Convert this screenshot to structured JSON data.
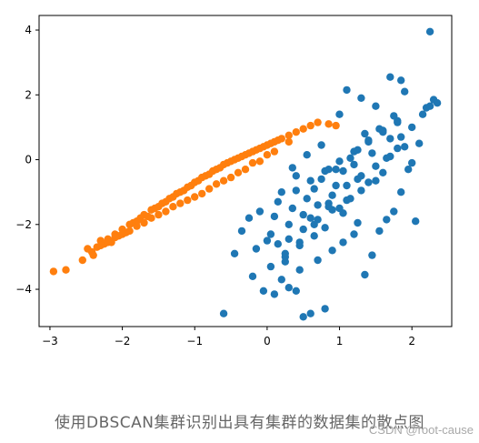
{
  "caption": "使用DBSCAN集群识别出具有集群的数据集的散点图",
  "watermark": "CSDN @root-cause",
  "colors": {
    "cluster_0": "#1f77b4",
    "cluster_1": "#ff7f0e"
  },
  "chart_data": {
    "type": "scatter",
    "title": "",
    "xlabel": "",
    "ylabel": "",
    "xlim": [
      -3.15,
      2.55
    ],
    "ylim": [
      -5.15,
      4.45
    ],
    "xticks": [
      -3,
      -2,
      -1,
      0,
      1,
      2
    ],
    "yticks": [
      -4,
      -2,
      0,
      2,
      4
    ],
    "grid": false,
    "series": [
      {
        "color": "#ff7f0e",
        "x": [
          -2.95,
          -2.78,
          -2.55,
          -2.48,
          -2.42,
          -2.35,
          -2.3,
          -2.25,
          -2.2,
          -2.15,
          -2.1,
          -2.05,
          -2.0,
          -1.95,
          -1.9,
          -1.85,
          -1.8,
          -1.75,
          -1.7,
          -1.65,
          -1.6,
          -1.55,
          -1.5,
          -1.45,
          -1.4,
          -1.35,
          -1.3,
          -1.25,
          -1.2,
          -1.15,
          -1.1,
          -1.05,
          -1.0,
          -0.95,
          -0.9,
          -0.85,
          -0.8,
          -0.75,
          -0.7,
          -0.65,
          -0.6,
          -0.55,
          -0.5,
          -0.45,
          -0.4,
          -0.35,
          -0.3,
          -0.25,
          -0.2,
          -0.15,
          -0.1,
          -0.05,
          0.0,
          0.05,
          0.1,
          0.15,
          0.2,
          0.3,
          0.4,
          0.5,
          0.6,
          0.7,
          0.85,
          0.95,
          -2.4,
          -2.2,
          -2.0,
          -1.8,
          -1.6,
          -1.4,
          -1.2,
          -1.0,
          -0.8,
          -0.6,
          -0.4,
          -0.2,
          0.0,
          -2.3,
          -2.1,
          -1.9,
          -1.7,
          -1.5,
          -1.3,
          -1.1,
          -0.9,
          -0.7,
          -0.5,
          -0.3,
          -0.1,
          0.1,
          0.3
        ],
        "y": [
          -3.45,
          -3.4,
          -3.1,
          -2.75,
          -2.85,
          -2.7,
          -2.5,
          -2.6,
          -2.45,
          -2.55,
          -2.3,
          -2.35,
          -2.15,
          -2.25,
          -2.0,
          -1.95,
          -1.9,
          -1.8,
          -1.7,
          -1.75,
          -1.55,
          -1.5,
          -1.45,
          -1.35,
          -1.3,
          -1.2,
          -1.15,
          -1.05,
          -1.0,
          -0.95,
          -0.85,
          -0.8,
          -0.7,
          -0.65,
          -0.55,
          -0.5,
          -0.45,
          -0.35,
          -0.3,
          -0.25,
          -0.15,
          -0.1,
          -0.05,
          0.0,
          0.05,
          0.1,
          0.15,
          0.2,
          0.25,
          0.3,
          0.35,
          0.4,
          0.45,
          0.5,
          0.55,
          0.6,
          0.65,
          0.75,
          0.85,
          0.95,
          1.05,
          1.15,
          1.1,
          1.05,
          -2.95,
          -2.55,
          -2.3,
          -2.05,
          -1.8,
          -1.6,
          -1.35,
          -1.15,
          -0.9,
          -0.65,
          -0.4,
          -0.1,
          0.15,
          -2.65,
          -2.4,
          -2.2,
          -1.95,
          -1.7,
          -1.45,
          -1.25,
          -1.05,
          -0.75,
          -0.55,
          -0.3,
          -0.05,
          0.25,
          0.55
        ]
      },
      {
        "color": "#1f77b4",
        "x": [
          2.25,
          1.7,
          1.85,
          1.1,
          2.3,
          2.2,
          1.0,
          0.95,
          1.5,
          1.3,
          1.9,
          0.6,
          0.8,
          0.5,
          0.4,
          0.3,
          0.2,
          0.1,
          -0.05,
          -0.2,
          -0.45,
          -0.6,
          -0.35,
          -0.25,
          0.0,
          0.25,
          0.45,
          0.7,
          0.9,
          1.05,
          1.2,
          1.35,
          1.45,
          1.55,
          1.65,
          1.75,
          1.85,
          1.95,
          2.05,
          0.35,
          0.55,
          0.65,
          0.75,
          0.85,
          1.15,
          1.25,
          1.4,
          1.6,
          1.8,
          2.0,
          2.1,
          0.15,
          0.05,
          -0.1,
          0.3,
          0.5,
          0.7,
          0.9,
          1.1,
          1.3,
          1.5,
          1.7,
          1.9,
          0.4,
          0.6,
          0.8,
          1.0,
          1.2,
          1.4,
          1.6,
          1.8,
          2.15,
          2.25,
          2.35,
          1.25,
          1.05,
          0.85,
          0.65,
          0.45,
          0.25,
          0.95,
          1.15,
          1.35,
          1.55,
          1.75,
          0.55,
          0.75,
          0.35,
          0.15,
          -0.15,
          0.05,
          0.2,
          0.4,
          0.6,
          0.8,
          1.0,
          1.2,
          1.4,
          1.6,
          1.8,
          2.0,
          0.3,
          0.5,
          0.7,
          0.9,
          1.1,
          1.3,
          1.5,
          1.7,
          0.1,
          0.25,
          0.45,
          0.65,
          0.85,
          1.05,
          1.25,
          1.45,
          1.65,
          1.85
        ],
        "y": [
          3.95,
          2.55,
          2.45,
          2.15,
          1.85,
          1.6,
          1.4,
          -0.3,
          1.65,
          1.9,
          2.1,
          -4.75,
          -4.6,
          -4.85,
          -4.05,
          -3.95,
          -3.7,
          -4.15,
          -4.05,
          -3.6,
          -2.9,
          -4.75,
          -2.2,
          -1.8,
          -2.5,
          -3.0,
          -3.4,
          -3.1,
          -2.8,
          -2.55,
          -2.3,
          -3.55,
          -2.95,
          -2.2,
          -1.85,
          -1.6,
          -1.0,
          -0.3,
          -1.9,
          -1.5,
          -1.2,
          -0.9,
          -0.6,
          -0.3,
          0.05,
          0.3,
          0.6,
          0.9,
          1.2,
          1.0,
          0.5,
          -2.6,
          -2.3,
          -1.6,
          -2.0,
          -1.7,
          -1.4,
          -1.1,
          -0.8,
          -0.5,
          -0.2,
          0.1,
          0.4,
          -0.95,
          -0.65,
          -0.35,
          -0.05,
          0.25,
          0.55,
          0.85,
          1.15,
          1.4,
          1.65,
          1.75,
          -1.95,
          -1.65,
          -1.35,
          -2.35,
          -2.65,
          -3.15,
          -0.8,
          -1.2,
          0.8,
          0.95,
          1.35,
          0.15,
          0.45,
          -0.25,
          -1.3,
          -2.75,
          -3.3,
          -1.0,
          -0.5,
          -1.8,
          -2.1,
          -1.5,
          -0.15,
          -0.7,
          -0.4,
          0.35,
          -0.1,
          -2.45,
          -2.15,
          -1.85,
          -1.55,
          -1.25,
          -0.95,
          -0.65,
          0.65,
          -1.75,
          -2.9,
          -2.55,
          -2.0,
          -1.45,
          -0.35,
          -0.6,
          0.2,
          0.05,
          0.7
        ]
      }
    ]
  }
}
